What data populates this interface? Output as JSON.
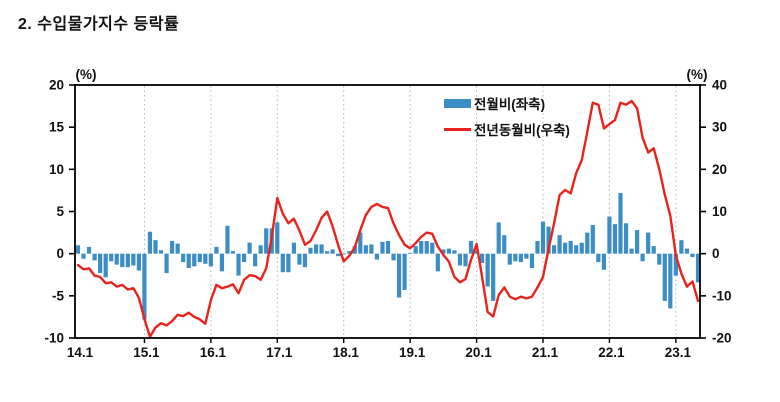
{
  "title": "2. 수입물가지수 등락률",
  "chart": {
    "left_axis_unit": "(%)",
    "right_axis_unit": "(%)",
    "left_ticks": [
      20,
      15,
      10,
      5,
      0,
      -5,
      -10
    ],
    "right_ticks": [
      40,
      30,
      20,
      10,
      0,
      -10,
      -20
    ],
    "x_tick_labels": [
      "14.1",
      "15.1",
      "16.1",
      "17.1",
      "18.1",
      "19.1",
      "20.1",
      "21.1",
      "22.1",
      "23.1"
    ],
    "legend": [
      {
        "label": "전월비(좌축)",
        "type": "bar",
        "color": "#3b8dc6"
      },
      {
        "label": "전년동월비(우축)",
        "type": "line",
        "color": "#e8231c"
      }
    ],
    "colors": {
      "bar": "#3b8dc6",
      "line": "#e8231c",
      "gridline": "#b3b3b3",
      "axis": "#000000",
      "text": "#111111",
      "background": "#ffffff"
    }
  },
  "chart_data": {
    "type": "bar+line combo",
    "title": "수입물가지수 등락률",
    "xlabel": "",
    "ylabel_left": "(%)",
    "ylabel_right": "(%)",
    "left_ylim": [
      -10,
      20
    ],
    "right_ylim": [
      -20,
      40
    ],
    "grid": "vertical-dashed-yearly",
    "legend_position": "upper-middle-right",
    "x": [
      "14.1",
      "14.2",
      "14.3",
      "14.4",
      "14.5",
      "14.6",
      "14.7",
      "14.8",
      "14.9",
      "14.10",
      "14.11",
      "14.12",
      "15.1",
      "15.2",
      "15.3",
      "15.4",
      "15.5",
      "15.6",
      "15.7",
      "15.8",
      "15.9",
      "15.10",
      "15.11",
      "15.12",
      "16.1",
      "16.2",
      "16.3",
      "16.4",
      "16.5",
      "16.6",
      "16.7",
      "16.8",
      "16.9",
      "16.10",
      "16.11",
      "16.12",
      "17.1",
      "17.2",
      "17.3",
      "17.4",
      "17.5",
      "17.6",
      "17.7",
      "17.8",
      "17.9",
      "17.10",
      "17.11",
      "17.12",
      "18.1",
      "18.2",
      "18.3",
      "18.4",
      "18.5",
      "18.6",
      "18.7",
      "18.8",
      "18.9",
      "18.10",
      "18.11",
      "18.12",
      "19.1",
      "19.2",
      "19.3",
      "19.4",
      "19.5",
      "19.6",
      "19.7",
      "19.8",
      "19.9",
      "19.10",
      "19.11",
      "19.12",
      "20.1",
      "20.2",
      "20.3",
      "20.4",
      "20.5",
      "20.6",
      "20.7",
      "20.8",
      "20.9",
      "20.10",
      "20.11",
      "20.12",
      "21.1",
      "21.2",
      "21.3",
      "21.4",
      "21.5",
      "21.6",
      "21.7",
      "21.8",
      "21.9",
      "21.10",
      "21.11",
      "21.12",
      "22.1",
      "22.2",
      "22.3",
      "22.4",
      "22.5",
      "22.6",
      "22.7",
      "22.8",
      "22.9",
      "22.10",
      "22.11",
      "22.12",
      "23.1",
      "23.2",
      "23.3",
      "23.4",
      "23.5"
    ],
    "series": [
      {
        "name": "전월비(좌축)",
        "type": "bar",
        "axis": "left",
        "values": [
          1.0,
          -0.6,
          0.8,
          -0.8,
          -2.3,
          -2.8,
          -0.9,
          -1.3,
          -1.6,
          -1.6,
          -1.4,
          -2.0,
          -7.8,
          2.6,
          1.6,
          0.4,
          -2.3,
          1.5,
          1.2,
          -1.0,
          -1.7,
          -1.5,
          -1.0,
          -1.2,
          -1.5,
          0.8,
          -2.1,
          3.3,
          0.3,
          -2.6,
          -1.0,
          1.3,
          -1.5,
          1.0,
          3.0,
          3.0,
          3.7,
          -2.2,
          -2.2,
          1.3,
          -1.3,
          -1.6,
          0.7,
          1.1,
          1.1,
          0.3,
          0.5,
          -0.3,
          -0.1,
          0.3,
          0.9,
          2.5,
          1.0,
          1.1,
          -0.7,
          1.4,
          1.5,
          -0.8,
          -5.2,
          -4.3,
          0.1,
          0.9,
          1.5,
          1.5,
          1.3,
          -2.1,
          0.5,
          0.6,
          0.4,
          -1.4,
          -1.5,
          1.5,
          0.4,
          -1.1,
          -3.9,
          -5.6,
          3.7,
          2.2,
          -1.3,
          -0.9,
          -1.0,
          -0.6,
          -1.7,
          1.5,
          3.8,
          3.2,
          1.0,
          2.2,
          1.3,
          1.5,
          1.0,
          1.3,
          2.5,
          3.4,
          -1.0,
          -1.9,
          4.4,
          3.5,
          7.2,
          3.6,
          0.6,
          2.8,
          -0.9,
          2.5,
          0.9,
          -1.3,
          -5.6,
          -6.5,
          -2.6,
          1.6,
          0.6,
          -0.4,
          -3.4
        ]
      },
      {
        "name": "전년동월비(우축)",
        "type": "line",
        "axis": "right",
        "values": [
          -2.7,
          -3.7,
          -3.5,
          -5.2,
          -5.5,
          -7.0,
          -6.8,
          -7.8,
          -7.4,
          -8.5,
          -8.2,
          -10.5,
          -15.5,
          -19.7,
          -17.5,
          -16.5,
          -17.0,
          -16.0,
          -14.5,
          -14.8,
          -14.0,
          -15.0,
          -15.6,
          -16.6,
          -11.0,
          -7.4,
          -8.2,
          -7.8,
          -7.3,
          -9.4,
          -6.2,
          -5.1,
          -5.3,
          -6.2,
          -3.5,
          4.0,
          13.2,
          9.5,
          7.2,
          8.3,
          5.5,
          2.1,
          3.0,
          5.5,
          8.5,
          10.0,
          6.5,
          2.0,
          -1.8,
          -0.5,
          1.5,
          5.6,
          9.2,
          11.1,
          11.8,
          11.1,
          10.8,
          7.2,
          4.4,
          2.1,
          1.3,
          2.5,
          4.0,
          5.0,
          4.7,
          1.7,
          -0.3,
          -1.9,
          -5.5,
          -6.8,
          -6.0,
          -1.5,
          2.3,
          -5.5,
          -13.8,
          -14.9,
          -9.8,
          -8.0,
          -10.2,
          -10.8,
          -10.2,
          -10.6,
          -10.2,
          -8.0,
          -5.5,
          1.0,
          7.2,
          13.9,
          15.1,
          14.3,
          19.1,
          22.2,
          28.9,
          35.8,
          35.3,
          29.7,
          30.7,
          31.7,
          35.8,
          35.3,
          36.2,
          34.5,
          27.5,
          24.0,
          25.0,
          20.0,
          14.0,
          9.0,
          -0.5,
          -4.7,
          -7.8,
          -6.6,
          -11.2
        ]
      }
    ]
  }
}
